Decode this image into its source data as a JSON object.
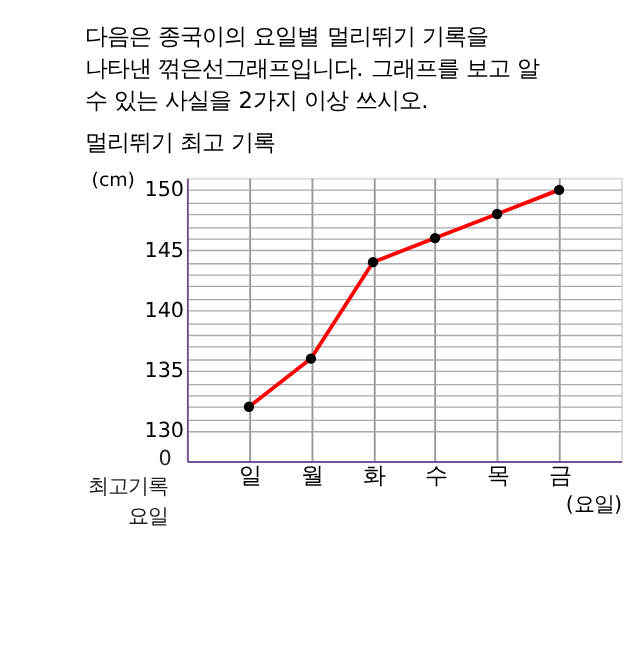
{
  "chart_data": {
    "type": "line",
    "title": "다음은 종국이의 요일별 멀리뛰기 기록을 나타낸 꺾은선그래프입니다. 그래프를 보고 알 수 있는 사실을 2가지 이상 쓰시오.",
    "subtitle": "멀리뛰기 최고 기록",
    "ylabel": "(cm)",
    "xlabel": "(요일)",
    "annotations": [
      "0",
      "최고기록",
      "요일"
    ],
    "categories": [
      "일",
      "월",
      "화",
      "수",
      "목",
      "금"
    ],
    "series": [
      {
        "color": "#ff0000",
        "values": [
          132,
          136,
          144,
          146,
          148,
          150
        ]
      }
    ],
    "ylim": [
      127.5,
      151
    ],
    "yticks": [
      130,
      {
        "value": 131,
        "label": null
      },
      {
        "value": 132,
        "label": null
      },
      {
        "value": 133,
        "label": null
      },
      {
        "value": 134,
        "label": null
      },
      135,
      {
        "value": 136,
        "label": null
      },
      {
        "value": 137,
        "label": null
      },
      {
        "value": 138,
        "label": null
      },
      {
        "value": 139,
        "label": null
      },
      140,
      {
        "value": 141,
        "label": null
      },
      {
        "value": 142,
        "label": null
      },
      {
        "value": 143,
        "label": null
      },
      {
        "value": 144,
        "label": null
      },
      145,
      {
        "value": 146,
        "label": null
      },
      {
        "value": 147,
        "label": null
      },
      {
        "value": 148,
        "label": null
      },
      {
        "value": 149,
        "label": null
      },
      150
    ],
    "grid": true,
    "marker": "circle",
    "line_style": "solid"
  }
}
